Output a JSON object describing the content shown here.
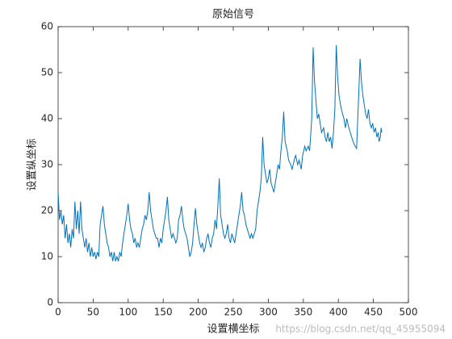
{
  "chart_data": {
    "type": "line",
    "title": "原始信号",
    "x_label": "设置横坐标",
    "y_label": "设置纵坐标",
    "watermark": "https://blog.csdn.net/qq_45955094",
    "xlim": [
      0,
      500
    ],
    "xticks": [
      0,
      50,
      100,
      150,
      200,
      250,
      300,
      350,
      400,
      450,
      500
    ],
    "ylim": [
      0,
      60
    ],
    "yticks": [
      0,
      10,
      20,
      30,
      40,
      50,
      60
    ],
    "color": "#0072bd",
    "x": [
      0,
      2,
      4,
      6,
      8,
      10,
      12,
      14,
      16,
      18,
      20,
      22,
      24,
      26,
      28,
      30,
      32,
      34,
      36,
      38,
      40,
      42,
      44,
      46,
      48,
      50,
      52,
      54,
      56,
      58,
      60,
      62,
      64,
      66,
      68,
      70,
      72,
      74,
      76,
      78,
      80,
      82,
      84,
      86,
      88,
      90,
      92,
      94,
      96,
      98,
      100,
      102,
      104,
      106,
      108,
      110,
      112,
      114,
      116,
      118,
      120,
      122,
      124,
      126,
      128,
      130,
      132,
      134,
      136,
      138,
      140,
      142,
      144,
      146,
      148,
      150,
      152,
      154,
      156,
      158,
      160,
      162,
      164,
      166,
      168,
      170,
      172,
      174,
      176,
      178,
      180,
      182,
      184,
      186,
      188,
      190,
      192,
      194,
      196,
      198,
      200,
      202,
      204,
      206,
      208,
      210,
      212,
      214,
      216,
      218,
      220,
      222,
      224,
      226,
      228,
      230,
      232,
      234,
      236,
      238,
      240,
      242,
      244,
      246,
      248,
      250,
      252,
      254,
      256,
      258,
      260,
      262,
      264,
      266,
      268,
      270,
      272,
      274,
      276,
      278,
      280,
      282,
      284,
      286,
      288,
      290,
      292,
      294,
      296,
      298,
      300,
      302,
      304,
      306,
      308,
      310,
      312,
      314,
      316,
      318,
      320,
      322,
      324,
      327,
      329,
      332,
      334,
      337,
      339,
      342,
      344,
      347,
      349,
      352,
      354,
      357,
      359,
      362,
      364,
      366,
      368,
      370,
      372,
      374,
      376,
      379,
      381,
      383,
      385,
      387,
      389,
      391,
      393,
      395,
      397,
      399,
      401,
      403,
      406,
      408,
      410,
      412,
      415,
      417,
      419,
      421,
      424,
      426,
      429,
      431,
      433,
      435,
      437,
      439,
      441,
      443,
      445,
      447,
      449,
      451,
      453,
      455,
      457,
      458,
      460,
      461,
      462
    ],
    "values": [
      24,
      18,
      20,
      17,
      19,
      14,
      17,
      13,
      15,
      12,
      16,
      14,
      22,
      16,
      20,
      15,
      22,
      16,
      14,
      12,
      14,
      11,
      13,
      10,
      12,
      10,
      11,
      9.5,
      11,
      10,
      17,
      19,
      21,
      17,
      15,
      13,
      12,
      10,
      11,
      9,
      11,
      9,
      10,
      9,
      11,
      10,
      13,
      15,
      17,
      19,
      21.5,
      18,
      16,
      15,
      13,
      14,
      12,
      13,
      12,
      14,
      16,
      17,
      19,
      18,
      20,
      24,
      20,
      18,
      16,
      15,
      14,
      14,
      12,
      14,
      13,
      16,
      18,
      20,
      23,
      18,
      16,
      14,
      15,
      14,
      13,
      14,
      18,
      19,
      21,
      18,
      16,
      15,
      14,
      12,
      10,
      11,
      13,
      17,
      20.5,
      17,
      15,
      13,
      12,
      13,
      11,
      12,
      14,
      15,
      13,
      12,
      14,
      15,
      18,
      16,
      21,
      27,
      19,
      17,
      15,
      14,
      15,
      17,
      14,
      13,
      15,
      14,
      13,
      15,
      17,
      19,
      21,
      24,
      20,
      19,
      17,
      16,
      15,
      14,
      15,
      14,
      15,
      16,
      20,
      22,
      24,
      27,
      36,
      30,
      28,
      26,
      27,
      29,
      26,
      25,
      24,
      26,
      28,
      30,
      29,
      33,
      36,
      41.5,
      35,
      33,
      31,
      30,
      29,
      31,
      32,
      30,
      31,
      29,
      32,
      34,
      33,
      34,
      33,
      40,
      55.5,
      48,
      44,
      40,
      41,
      39,
      37,
      38,
      36,
      35,
      37,
      35,
      36,
      33.5,
      37,
      42,
      56,
      49,
      45,
      43,
      41,
      40,
      38,
      40,
      38,
      37,
      36,
      35,
      34,
      33.5,
      45,
      53,
      48,
      45,
      43,
      41,
      40,
      42,
      39,
      38,
      39,
      37,
      38,
      36,
      37,
      35,
      36,
      38,
      37
    ]
  }
}
